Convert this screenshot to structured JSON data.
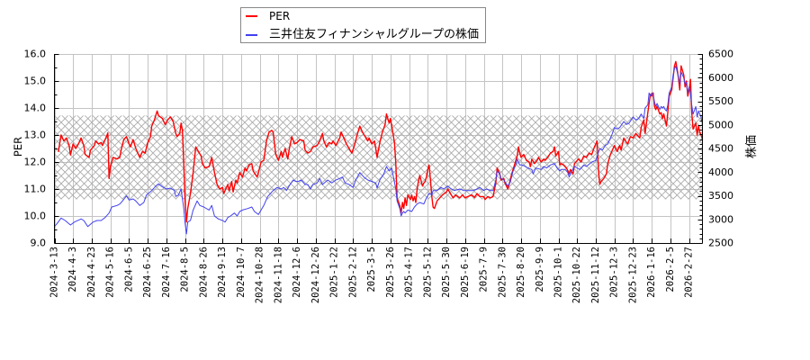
{
  "legend": {
    "position": "upper center",
    "items": [
      {
        "label": "PER",
        "color": "#ff0000"
      },
      {
        "label": "三井住友フィナンシャルグループの株価",
        "color": "#4040f0"
      }
    ]
  },
  "axes": {
    "left_label": "PER",
    "right_label": "株価"
  },
  "chart_data": {
    "type": "line",
    "title": "",
    "xlabel": "",
    "ylabel": "PER",
    "ylabel_right": "株価",
    "grid": true,
    "legend_position": "upper center",
    "x_range": [
      0,
      486
    ],
    "x_tick_step": 14,
    "x_tick_labels": [
      "2024-3-13",
      "2024-4-3",
      "2024-4-23",
      "2024-5-16",
      "2024-6-5",
      "2024-6-25",
      "2024-7-16",
      "2024-8-5",
      "2024-8-26",
      "2024-9-13",
      "2024-10-7",
      "2024-10-28",
      "2024-11-18",
      "2024-12-6",
      "2024-12-26",
      "2025-1-22",
      "2025-2-12",
      "2025-3-5",
      "2025-3-26",
      "2025-4-17",
      "2025-5-12",
      "2025-5-30",
      "2025-6-19",
      "2025-7-9",
      "2025-7-30",
      "2025-8-20",
      "2025-9-9",
      "2025-10-1",
      "2025-10-22",
      "2025-11-12",
      "2025-12-3",
      "2025-12-23",
      "2026-1-16",
      "2026-2-5",
      "2026-2-27"
    ],
    "ylim": [
      9.0,
      16.0
    ],
    "y_ticks": [
      "9.0",
      "10.0",
      "11.0",
      "12.0",
      "13.0",
      "14.0",
      "15.0",
      "16.0"
    ],
    "y_minor_step": 0.5,
    "ylim_right": [
      2500,
      6500
    ],
    "y_ticks_right": [
      "2500",
      "3000",
      "3500",
      "4000",
      "4500",
      "5000",
      "5500",
      "6000",
      "6500"
    ],
    "y_minor_step_right": 100,
    "band": {
      "axis": "left",
      "low": 10.62,
      "high": 13.72,
      "style": "crosshatch"
    },
    "series": [
      {
        "id": "per",
        "name": "PER",
        "axis": "left",
        "color": "#ff0000",
        "width": 1.4,
        "x": [
          3,
          5,
          7,
          9,
          11,
          12,
          14,
          16,
          18,
          20,
          22,
          23,
          26,
          27,
          30,
          31,
          33,
          35,
          36,
          39,
          40,
          41,
          42,
          44,
          47,
          49,
          50,
          52,
          54,
          56,
          57,
          59,
          61,
          63,
          64,
          66,
          68,
          70,
          72,
          73,
          75,
          77,
          78,
          81,
          83,
          85,
          87,
          89,
          91,
          92,
          94,
          95,
          96,
          97,
          98,
          99,
          100,
          102,
          104,
          106,
          108,
          110,
          111,
          113,
          116,
          118,
          120,
          122,
          124,
          126,
          127,
          130,
          131,
          133,
          134,
          136,
          137,
          139,
          141,
          143,
          144,
          146,
          148,
          149,
          152,
          153,
          155,
          157,
          159,
          161,
          163,
          164,
          166,
          168,
          170,
          171,
          173,
          175,
          176,
          178,
          180,
          182,
          184,
          187,
          188,
          190,
          192,
          194,
          197,
          199,
          201,
          202,
          204,
          206,
          208,
          209,
          211,
          214,
          215,
          217,
          219,
          221,
          223,
          225,
          227,
          229,
          231,
          233,
          235,
          236,
          238,
          240,
          241,
          242,
          244,
          246,
          248,
          249,
          251,
          252,
          253,
          255,
          256,
          257,
          259,
          260,
          261,
          262,
          263,
          264,
          265,
          267,
          268,
          269,
          270,
          271,
          272,
          273,
          274,
          276,
          277,
          278,
          279,
          280,
          281,
          282,
          283,
          284,
          285,
          287,
          289,
          291,
          294,
          295,
          297,
          299,
          301,
          304,
          306,
          308,
          310,
          313,
          315,
          317,
          319,
          322,
          323,
          325,
          327,
          329,
          331,
          332,
          334,
          335,
          337,
          338,
          340,
          341,
          343,
          345,
          347,
          348,
          349,
          350,
          352,
          354,
          356,
          357,
          358,
          360,
          362,
          363,
          365,
          367,
          368,
          370,
          372,
          374,
          375,
          376,
          378,
          379,
          380,
          382,
          384,
          385,
          386,
          387,
          389,
          390,
          393,
          395,
          397,
          399,
          401,
          403,
          405,
          406,
          407,
          408,
          409,
          410,
          412,
          414,
          415,
          417,
          419,
          420,
          422,
          424,
          425,
          427,
          429,
          430,
          432,
          434,
          436,
          437,
          439,
          440,
          442,
          443,
          444,
          445,
          446,
          447,
          448,
          449,
          450,
          451,
          452,
          454,
          455,
          456,
          457,
          458,
          459,
          460,
          461,
          463,
          464,
          465,
          466,
          467,
          468,
          469,
          470,
          472,
          473,
          474,
          475,
          476,
          477,
          478,
          479,
          481,
          482,
          483,
          484,
          485,
          486
        ],
        "values": [
          12.39,
          13.0,
          12.78,
          12.89,
          12.61,
          12.26,
          12.67,
          12.5,
          12.67,
          12.89,
          12.61,
          12.28,
          12.17,
          12.44,
          12.61,
          12.78,
          12.67,
          12.72,
          12.61,
          12.94,
          13.08,
          11.39,
          11.83,
          12.17,
          12.11,
          12.17,
          12.44,
          12.83,
          12.94,
          12.67,
          12.56,
          12.83,
          12.5,
          12.28,
          12.17,
          12.39,
          12.33,
          12.72,
          12.94,
          13.33,
          13.56,
          13.89,
          13.72,
          13.61,
          13.39,
          13.56,
          13.67,
          13.5,
          13.06,
          12.94,
          13.06,
          13.44,
          13.17,
          11.94,
          10.5,
          9.78,
          10.28,
          10.83,
          11.61,
          12.56,
          12.39,
          12.22,
          11.94,
          11.78,
          11.83,
          12.17,
          11.61,
          11.17,
          11.0,
          11.06,
          10.83,
          11.17,
          10.94,
          11.28,
          10.89,
          11.33,
          11.22,
          11.61,
          11.44,
          11.78,
          11.67,
          11.89,
          11.94,
          11.67,
          11.44,
          11.61,
          12.0,
          12.06,
          12.78,
          13.11,
          13.17,
          13.11,
          12.28,
          12.06,
          12.39,
          12.17,
          12.5,
          12.11,
          12.44,
          12.94,
          12.67,
          12.72,
          12.83,
          12.78,
          12.44,
          12.33,
          12.39,
          12.56,
          12.61,
          12.78,
          13.06,
          12.78,
          12.56,
          12.72,
          12.67,
          12.78,
          12.61,
          12.89,
          13.11,
          12.89,
          12.67,
          12.5,
          12.33,
          12.61,
          13.0,
          13.33,
          13.11,
          12.94,
          12.78,
          12.89,
          12.67,
          12.78,
          12.5,
          12.17,
          12.72,
          13.11,
          13.39,
          13.78,
          13.44,
          13.61,
          13.33,
          12.72,
          11.94,
          10.67,
          10.39,
          10.11,
          10.5,
          10.28,
          10.67,
          10.39,
          10.78,
          10.61,
          10.78,
          10.56,
          10.72,
          10.5,
          11.0,
          11.28,
          11.5,
          11.11,
          11.22,
          11.28,
          11.44,
          11.72,
          11.89,
          11.33,
          10.72,
          10.33,
          10.28,
          10.56,
          10.67,
          10.78,
          10.89,
          11.0,
          10.83,
          10.67,
          10.78,
          10.67,
          10.78,
          10.67,
          10.72,
          10.78,
          10.69,
          10.83,
          10.72,
          10.72,
          10.61,
          10.72,
          10.67,
          10.72,
          11.22,
          11.78,
          11.56,
          11.33,
          11.39,
          11.22,
          11.0,
          11.17,
          11.56,
          11.89,
          12.22,
          12.56,
          12.33,
          12.17,
          12.28,
          12.06,
          12.0,
          11.83,
          12.11,
          11.94,
          12.06,
          12.17,
          12.0,
          12.11,
          12.06,
          12.17,
          12.33,
          12.39,
          12.56,
          12.22,
          12.39,
          11.89,
          11.94,
          11.89,
          11.78,
          11.67,
          11.56,
          11.72,
          11.56,
          11.94,
          12.11,
          12.0,
          12.22,
          12.17,
          12.33,
          12.28,
          12.56,
          12.67,
          12.78,
          11.72,
          11.17,
          11.28,
          11.39,
          11.56,
          11.94,
          12.28,
          12.5,
          12.61,
          12.39,
          12.61,
          12.44,
          12.89,
          12.72,
          12.67,
          12.94,
          12.89,
          13.06,
          13.0,
          12.89,
          13.28,
          13.56,
          13.06,
          13.44,
          13.83,
          14.17,
          14.5,
          14.44,
          14.56,
          14.06,
          13.94,
          14.06,
          13.78,
          13.83,
          13.61,
          13.78,
          13.56,
          13.33,
          13.83,
          14.44,
          14.67,
          15.11,
          15.56,
          15.72,
          15.44,
          15.11,
          14.67,
          15.56,
          15.22,
          14.78,
          15.0,
          14.44,
          14.67,
          15.06,
          13.83,
          13.22,
          13.44,
          13.0,
          13.33,
          13.11,
          13.0,
          12.83
        ]
      },
      {
        "id": "price",
        "name": "三井住友フィナンシャルグループの株価",
        "axis": "right",
        "color": "#4040f0",
        "width": 1.0,
        "x": [
          0,
          2,
          5,
          8,
          12,
          15,
          20,
          22,
          25,
          29,
          32,
          35,
          38,
          41,
          43,
          47,
          49,
          51,
          54,
          56,
          59,
          61,
          64,
          67,
          69,
          73,
          76,
          78,
          81,
          84,
          87,
          90,
          91,
          93,
          95,
          97,
          98,
          99,
          100,
          102,
          104,
          107,
          109,
          112,
          116,
          118,
          120,
          123,
          126,
          128,
          130,
          132,
          135,
          137,
          139,
          141,
          145,
          148,
          150,
          153,
          155,
          157,
          160,
          162,
          164,
          167,
          170,
          172,
          174,
          176,
          179,
          181,
          183,
          185,
          188,
          190,
          192,
          194,
          197,
          199,
          201,
          205,
          208,
          211,
          214,
          216,
          218,
          221,
          224,
          226,
          229,
          232,
          235,
          238,
          241,
          242,
          244,
          247,
          249,
          251,
          253,
          254,
          256,
          257,
          259,
          260,
          261,
          262,
          263,
          265,
          268,
          270,
          272,
          274,
          277,
          279,
          281,
          283,
          284,
          287,
          290,
          292,
          295,
          297,
          300,
          304,
          307,
          310,
          314,
          317,
          319,
          322,
          324,
          327,
          329,
          331,
          332,
          334,
          335,
          337,
          340,
          342,
          344,
          346,
          347,
          349,
          351,
          353,
          355,
          358,
          359,
          361,
          365,
          367,
          369,
          372,
          375,
          377,
          379,
          380,
          383,
          385,
          386,
          388,
          390,
          394,
          397,
          399,
          403,
          406,
          409,
          411,
          413,
          415,
          418,
          420,
          422,
          424,
          427,
          429,
          431,
          434,
          436,
          438,
          440,
          442,
          443,
          445,
          446,
          447,
          448,
          449,
          450,
          451,
          452,
          454,
          455,
          456,
          457,
          458,
          459,
          460,
          461,
          463,
          464,
          465,
          466,
          467,
          468,
          469,
          470,
          472,
          473,
          474,
          475,
          476,
          477,
          478,
          479,
          481,
          482,
          483,
          484,
          485,
          486
        ],
        "values": [
          2849,
          2913,
          3027,
          2976,
          2881,
          2944,
          3008,
          2976,
          2849,
          2944,
          2976,
          2976,
          3040,
          3135,
          3262,
          3294,
          3325,
          3389,
          3497,
          3408,
          3433,
          3389,
          3294,
          3357,
          3516,
          3611,
          3706,
          3751,
          3687,
          3643,
          3662,
          3611,
          3484,
          3516,
          3643,
          3230,
          2913,
          2690,
          2944,
          2976,
          3198,
          3389,
          3294,
          3262,
          3198,
          3294,
          3071,
          3008,
          2976,
          2944,
          3040,
          3071,
          3135,
          3071,
          3167,
          3198,
          3230,
          3262,
          3167,
          3103,
          3198,
          3294,
          3484,
          3548,
          3611,
          3675,
          3643,
          3675,
          3611,
          3706,
          3833,
          3802,
          3802,
          3833,
          3738,
          3738,
          3643,
          3738,
          3770,
          3865,
          3738,
          3833,
          3770,
          3833,
          3865,
          3897,
          3770,
          3738,
          3675,
          3833,
          3992,
          3897,
          3833,
          3802,
          3770,
          3662,
          3833,
          3960,
          4119,
          4024,
          4087,
          3929,
          3643,
          3389,
          3230,
          3071,
          3135,
          3167,
          3135,
          3198,
          3167,
          3262,
          3325,
          3357,
          3325,
          3452,
          3548,
          3516,
          3611,
          3611,
          3675,
          3643,
          3706,
          3656,
          3611,
          3643,
          3611,
          3611,
          3611,
          3643,
          3675,
          3611,
          3643,
          3611,
          3611,
          3833,
          4024,
          3960,
          3865,
          3833,
          3706,
          3802,
          4024,
          4151,
          4278,
          4151,
          4151,
          4119,
          4087,
          4056,
          3960,
          4087,
          4056,
          4119,
          4087,
          4151,
          4183,
          4087,
          4024,
          4056,
          4056,
          3992,
          3897,
          4024,
          4119,
          4056,
          4151,
          4119,
          4214,
          4246,
          4500,
          4468,
          4563,
          4595,
          4786,
          4944,
          4913,
          4944,
          5071,
          5008,
          5040,
          5167,
          5103,
          5135,
          5230,
          5135,
          5357,
          5421,
          5675,
          5611,
          5675,
          5643,
          5484,
          5389,
          5452,
          5325,
          5389,
          5357,
          5389,
          5325,
          5294,
          5421,
          5675,
          5802,
          6056,
          6183,
          6246,
          6119,
          6024,
          5865,
          6119,
          5992,
          5865,
          5897,
          5675,
          5802,
          5675,
          5421,
          5230,
          5389,
          5167,
          5294,
          5230,
          5167,
          5008
        ]
      }
    ]
  }
}
